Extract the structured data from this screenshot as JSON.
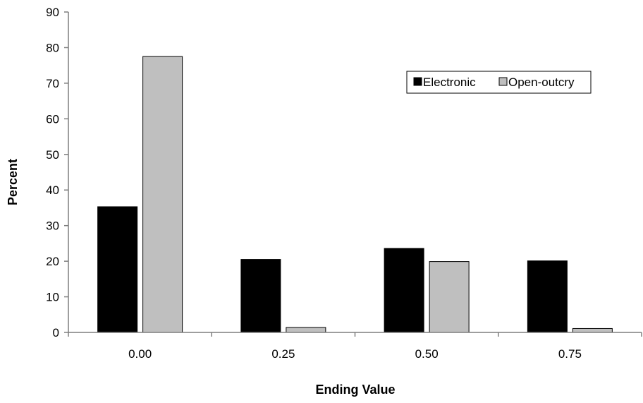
{
  "chart_data": {
    "type": "bar",
    "categories": [
      "0.00",
      "0.25",
      "0.50",
      "0.75"
    ],
    "series": [
      {
        "name": "Electronic",
        "values": [
          35.3,
          20.5,
          23.6,
          20.1
        ],
        "color": "#000000"
      },
      {
        "name": "Open-outcry",
        "values": [
          77.5,
          1.4,
          19.9,
          1.1
        ],
        "color": "#bfbfbf"
      }
    ],
    "title": "",
    "xlabel": "Ending Value",
    "ylabel": "Percent",
    "ylim": [
      0,
      90
    ],
    "yticks": [
      "0",
      "10",
      "20",
      "30",
      "40",
      "50",
      "60",
      "70",
      "80",
      "90"
    ],
    "grid": false,
    "legend_position": "top-right"
  }
}
